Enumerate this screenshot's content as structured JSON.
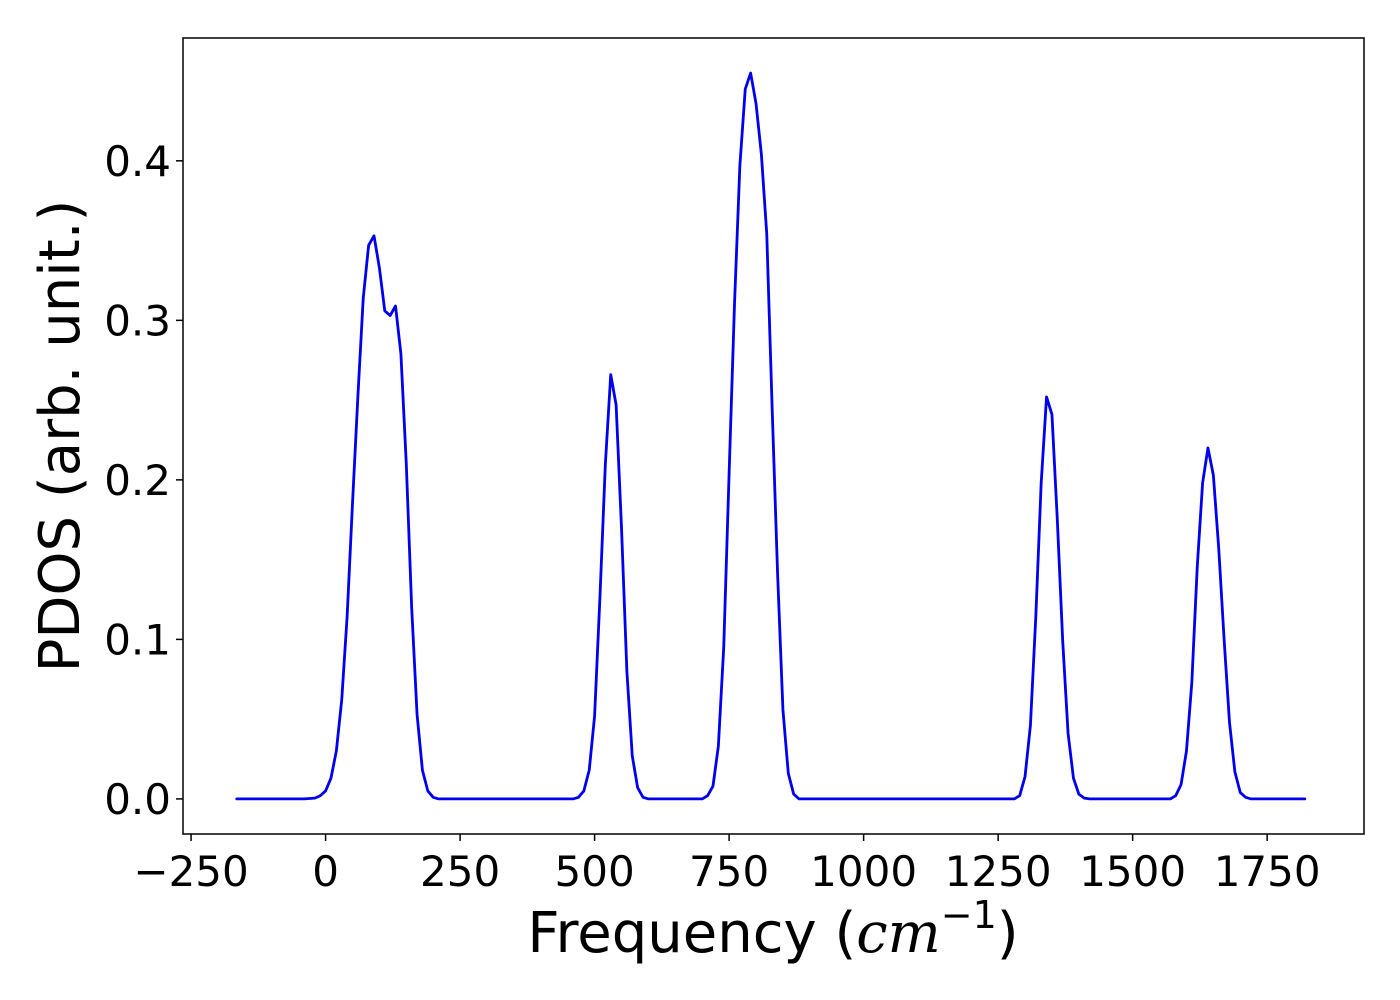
{
  "chart_data": {
    "type": "line",
    "title": "",
    "xlabel_prefix": "Frequency (",
    "xlabel_math": "cm",
    "xlabel_sup": "−1",
    "xlabel_suffix": ")",
    "ylabel": "PDOS (arb. unit.)",
    "xlim": [
      -265,
      1930
    ],
    "ylim": [
      -0.022,
      0.477
    ],
    "xticks": [
      -250,
      0,
      250,
      500,
      750,
      1000,
      1250,
      1500,
      1750
    ],
    "xtick_labels": [
      "−250",
      "0",
      "250",
      "500",
      "750",
      "1000",
      "1250",
      "1500",
      "1750"
    ],
    "yticks": [
      0.0,
      0.1,
      0.2,
      0.3,
      0.4
    ],
    "ytick_labels": [
      "0.0",
      "0.1",
      "0.2",
      "0.3",
      "0.4"
    ],
    "grid": false,
    "legend": "none",
    "line_color": "#0000ee",
    "series": [
      {
        "x": [
          -165,
          -100,
          -40,
          -20,
          -10,
          0,
          10,
          20,
          30,
          40,
          50,
          60,
          70,
          80,
          90,
          100,
          110,
          120,
          130,
          140,
          150,
          160,
          170,
          180,
          190,
          200,
          210,
          230,
          300,
          400,
          460,
          470,
          480,
          490,
          500,
          510,
          520,
          530,
          540,
          550,
          560,
          570,
          580,
          590,
          600,
          700,
          710,
          720,
          730,
          740,
          750,
          760,
          770,
          780,
          790,
          800,
          810,
          820,
          830,
          840,
          850,
          860,
          870,
          880,
          900,
          1000,
          1100,
          1200,
          1280,
          1290,
          1300,
          1310,
          1320,
          1330,
          1340,
          1350,
          1360,
          1370,
          1380,
          1390,
          1400,
          1410,
          1420,
          1430,
          1500,
          1560,
          1570,
          1580,
          1590,
          1600,
          1610,
          1620,
          1630,
          1640,
          1650,
          1660,
          1670,
          1680,
          1690,
          1700,
          1710,
          1720,
          1820
        ],
        "y": [
          0.0,
          0.0,
          0.0,
          0.0005,
          0.002,
          0.005,
          0.013,
          0.03,
          0.062,
          0.114,
          0.185,
          0.252,
          0.314,
          0.347,
          0.353,
          0.333,
          0.306,
          0.303,
          0.309,
          0.279,
          0.21,
          0.12,
          0.053,
          0.018,
          0.005,
          0.001,
          0.0,
          0.0,
          0.0,
          0.0,
          0.0,
          0.001,
          0.005,
          0.018,
          0.052,
          0.127,
          0.21,
          0.266,
          0.247,
          0.17,
          0.08,
          0.027,
          0.007,
          0.001,
          0.0,
          0.0,
          0.002,
          0.008,
          0.033,
          0.095,
          0.204,
          0.31,
          0.397,
          0.445,
          0.455,
          0.436,
          0.404,
          0.354,
          0.245,
          0.142,
          0.056,
          0.016,
          0.003,
          0.0,
          0.0,
          0.0,
          0.0,
          0.0,
          0.0,
          0.002,
          0.014,
          0.046,
          0.114,
          0.198,
          0.252,
          0.241,
          0.175,
          0.099,
          0.041,
          0.013,
          0.003,
          0.0005,
          0.0,
          0.0,
          0.0,
          0.0,
          0.0,
          0.002,
          0.009,
          0.03,
          0.073,
          0.145,
          0.198,
          0.22,
          0.203,
          0.157,
          0.1,
          0.048,
          0.017,
          0.004,
          0.001,
          0.0,
          0.0
        ]
      }
    ]
  }
}
